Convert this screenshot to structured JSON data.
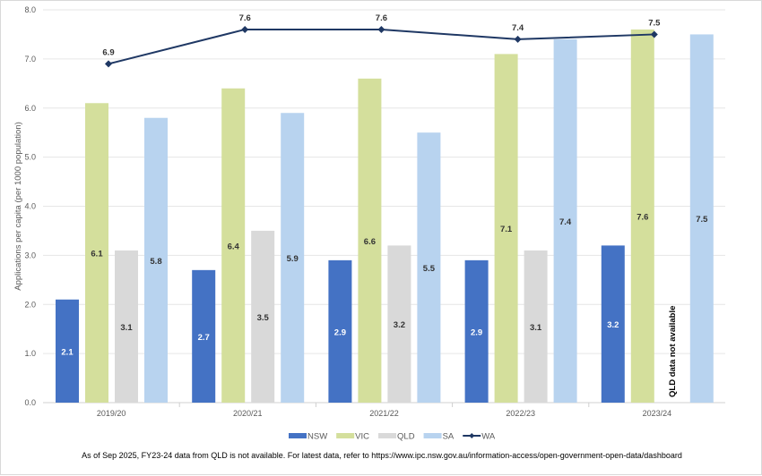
{
  "chart_data": {
    "type": "bar+line",
    "title": "",
    "xlabel": "",
    "ylabel": "Applications per capita (per 1000 population)",
    "ylim": [
      0,
      8
    ],
    "yticks": [
      "0.0",
      "1.0",
      "2.0",
      "3.0",
      "4.0",
      "5.0",
      "6.0",
      "7.0",
      "8.0"
    ],
    "grid": true,
    "legend_position": "bottom",
    "categories": [
      "2019/20",
      "2020/21",
      "2021/22",
      "2022/23",
      "2023/24"
    ],
    "series": [
      {
        "name": "NSW",
        "type": "bar",
        "color": "#4472c4",
        "label_color": "#ffffff",
        "values": [
          2.1,
          2.7,
          2.9,
          2.9,
          3.2
        ]
      },
      {
        "name": "VIC",
        "type": "bar",
        "color": "#d4df9c",
        "label_color": "#333333",
        "values": [
          6.1,
          6.4,
          6.6,
          7.1,
          7.6
        ]
      },
      {
        "name": "QLD",
        "type": "bar",
        "color": "#d9d9d9",
        "label_color": "#333333",
        "values": [
          3.1,
          3.5,
          3.2,
          3.1,
          null
        ]
      },
      {
        "name": "SA",
        "type": "bar",
        "color": "#b8d3ef",
        "label_color": "#333333",
        "values": [
          5.8,
          5.9,
          5.5,
          7.4,
          7.5
        ]
      },
      {
        "name": "WA",
        "type": "line",
        "color": "#1f3864",
        "values": [
          6.9,
          7.6,
          7.6,
          7.4,
          7.5
        ]
      }
    ],
    "annotations": [
      "QLD data not available"
    ]
  },
  "footnote": "As of Sep 2025, FY23-24 data from QLD is not available. For latest data, refer to https://www.ipc.nsw.gov.au/information-access/open-government-open-data/dashboard"
}
